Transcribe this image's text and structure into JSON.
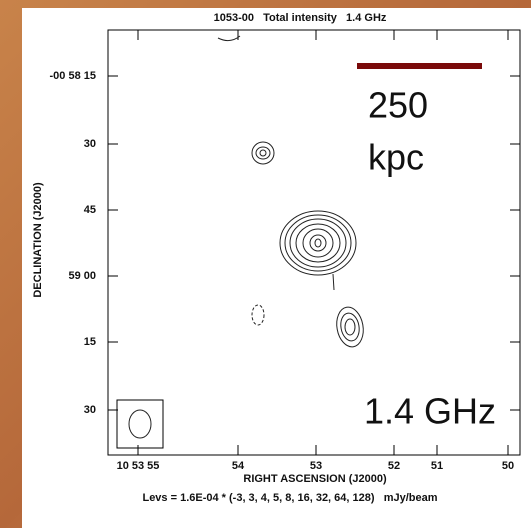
{
  "header": {
    "title": "1053-00   Total intensity   1.4 GHz"
  },
  "y_axis": {
    "label": "DECLINATION (J2000)",
    "ticks": [
      "-00 58 15",
      "30",
      "45",
      "59 00",
      "15",
      "30"
    ]
  },
  "x_axis": {
    "label": "RIGHT ASCENSION (J2000)",
    "ticks": [
      "10 53 55",
      "54",
      "53",
      "52",
      "51",
      "50"
    ]
  },
  "levels_note": "Levs = 1.6E-04 * (-3, 3, 4, 5, 8, 16, 32, 64, 128)   mJy/beam",
  "scale_bar": {
    "size": "250",
    "unit": "kpc"
  },
  "frequency_label": "1.4 GHz"
}
